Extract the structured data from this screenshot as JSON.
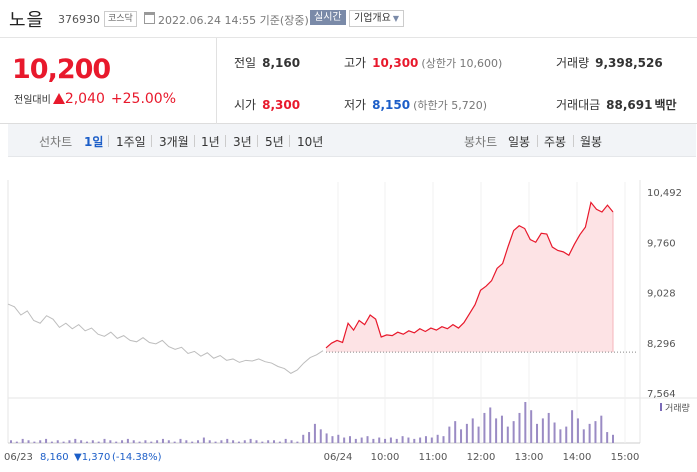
{
  "header": {
    "stock_name": "노을",
    "stock_code": "376930",
    "market_badge": "코스닥",
    "timestamp": "2022.06.24 14:55 기준(장중)",
    "realtime_button": "실시간",
    "company_button": "기업개요"
  },
  "summary": {
    "price": "10,200",
    "change_label": "전일대비",
    "change_value": "2,040",
    "change_pct": "+25.00%",
    "prev_close": {
      "label": "전일",
      "value": "8,160"
    },
    "open": {
      "label": "시가",
      "value": "8,300"
    },
    "high": {
      "label": "고가",
      "value": "10,300",
      "limit": "(상한가 10,600)"
    },
    "low": {
      "label": "저가",
      "value": "8,150",
      "limit": "(하한가 5,720)"
    },
    "volume": {
      "label": "거래량",
      "value": "9,398,526"
    },
    "amount": {
      "label": "거래대금",
      "value": "88,691",
      "unit": "백만"
    }
  },
  "tabs": {
    "line_label": "선차트",
    "periods": [
      "1일",
      "1주일",
      "3개월",
      "1년",
      "3년",
      "5년",
      "10년"
    ],
    "active": "1일",
    "candle_label": "봉차트",
    "candles": [
      "일봉",
      "주봉",
      "월봉"
    ]
  },
  "chart_data": {
    "type": "line",
    "ylim": [
      7564,
      10492
    ],
    "y_ticks": [
      "10,492",
      "9,760",
      "9,028",
      "8,296",
      "7,564"
    ],
    "x_ticks": [
      "06/24",
      "10:00",
      "11:00",
      "12:00",
      "13:00",
      "14:00",
      "15:00"
    ],
    "baseline": 8160,
    "prev_day_label": "06/23",
    "prev_day_close": "8,160",
    "prev_day_change": "1,370",
    "prev_day_pct": "(-14.38%)",
    "volume_legend": "거래량",
    "prev_day_series": [
      8860,
      8820,
      8700,
      8760,
      8620,
      8580,
      8690,
      8640,
      8520,
      8580,
      8500,
      8560,
      8470,
      8510,
      8420,
      8390,
      8450,
      8360,
      8400,
      8330,
      8310,
      8370,
      8300,
      8280,
      8330,
      8240,
      8200,
      8230,
      8140,
      8170,
      8100,
      8150,
      8070,
      8110,
      8040,
      8060,
      8010,
      8040,
      8030,
      8060,
      8020,
      8000,
      7950,
      7920,
      7850,
      7900,
      8000,
      8080,
      8120,
      8180
    ],
    "today_series": [
      8220,
      8290,
      8330,
      8300,
      8580,
      8480,
      8620,
      8560,
      8700,
      8640,
      8380,
      8410,
      8400,
      8450,
      8420,
      8470,
      8440,
      8500,
      8460,
      8510,
      8480,
      8530,
      8500,
      8560,
      8510,
      8590,
      8720,
      8850,
      9060,
      9120,
      9200,
      9380,
      9450,
      9700,
      9930,
      10000,
      9960,
      9800,
      9760,
      9890,
      9880,
      9690,
      9640,
      9620,
      9570,
      9730,
      9870,
      9980,
      10340,
      10240,
      10200,
      10300,
      10200
    ],
    "volume_series": [
      2,
      1,
      3,
      2,
      1,
      2,
      3,
      1,
      2,
      1,
      2,
      3,
      2,
      1,
      2,
      1,
      3,
      2,
      1,
      2,
      3,
      2,
      1,
      2,
      1,
      2,
      3,
      2,
      1,
      3,
      2,
      1,
      2,
      4,
      2,
      1,
      2,
      3,
      2,
      1,
      2,
      3,
      2,
      1,
      2,
      2,
      1,
      3,
      2,
      1,
      6,
      8,
      14,
      10,
      7,
      5,
      6,
      4,
      5,
      3,
      4,
      5,
      3,
      4,
      3,
      4,
      3,
      5,
      4,
      3,
      4,
      5,
      4,
      6,
      5,
      12,
      16,
      10,
      14,
      18,
      12,
      22,
      26,
      18,
      20,
      12,
      16,
      22,
      30,
      24,
      14,
      18,
      22,
      15,
      10,
      12,
      24,
      18,
      10,
      14,
      16,
      20,
      8,
      6
    ]
  }
}
